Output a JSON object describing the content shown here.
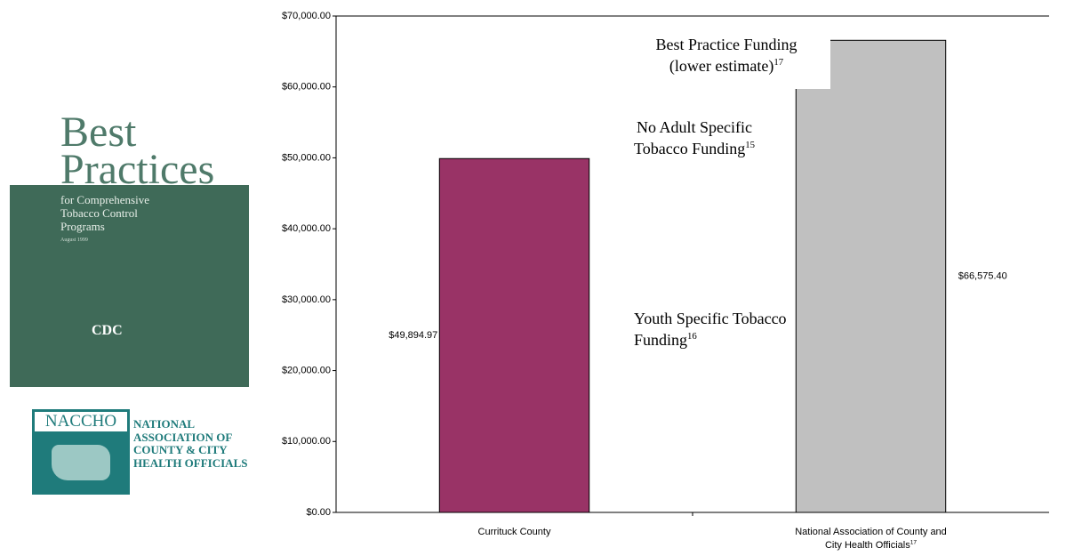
{
  "chart_data": {
    "type": "bar",
    "categories": [
      "Currituck County",
      "National Association of County and City Health Officials"
    ],
    "category_notes": [
      null,
      "17"
    ],
    "values": [
      49894.97,
      66575.4
    ],
    "value_labels": [
      "$49,894.97",
      "$66,575.40"
    ],
    "colors": [
      "#993366",
      "#c0c0c0"
    ],
    "ylim": [
      0,
      70000
    ],
    "yticks": [
      {
        "value": 0,
        "label": "$0.00"
      },
      {
        "value": 10000,
        "label": "$10,000.00"
      },
      {
        "value": 20000,
        "label": "$20,000.00"
      },
      {
        "value": 30000,
        "label": "$30,000.00"
      },
      {
        "value": 40000,
        "label": "$40,000.00"
      },
      {
        "value": 50000,
        "label": "$50,000.00"
      },
      {
        "value": 60000,
        "label": "$60,000.00"
      },
      {
        "value": 70000,
        "label": "$70,000.00"
      }
    ],
    "grid": false,
    "annotations": [
      {
        "text": "Best Practice Funding (lower estimate)",
        "note": "17"
      },
      {
        "text": "No Adult Specific Tobacco Funding",
        "note": "15"
      },
      {
        "text": "Youth Specific Tobacco Funding",
        "note": "16"
      }
    ]
  },
  "cover": {
    "title1": "Best",
    "title2": "Practices",
    "subtitle": "for Comprehensive Tobacco Control Programs",
    "date": "August 1999",
    "agency": "CDC"
  },
  "logo": {
    "abbr": "NACCHO",
    "name": "NATIONAL ASSOCIATION OF COUNTY & CITY HEALTH OFFICIALS"
  }
}
